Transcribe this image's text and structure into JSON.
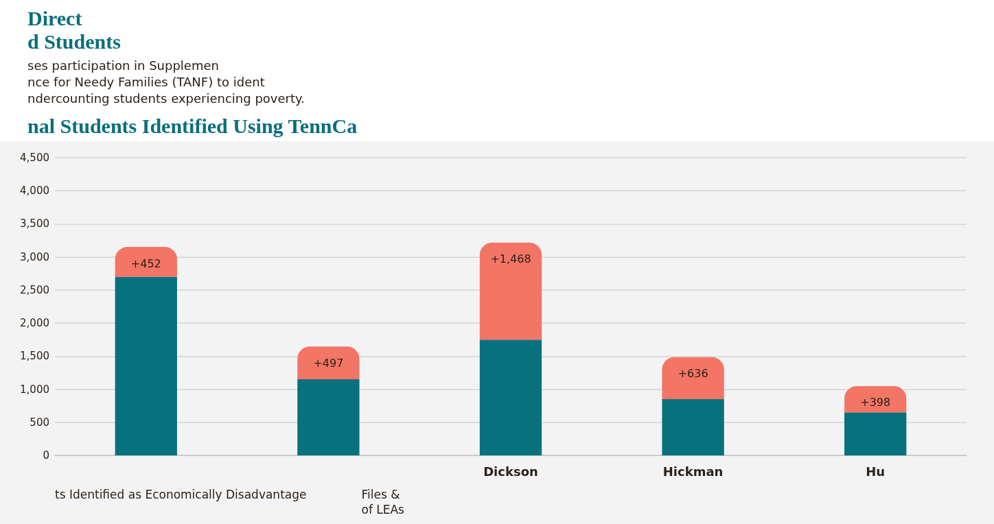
{
  "chart_data": {
    "type": "bar",
    "title": "nal Students Identified Using TennCa",
    "categories": [
      null,
      null,
      "Dickson",
      "Hickman",
      "Hu"
    ],
    "stacked": true,
    "series": [
      {
        "color": "#08717e",
        "values": [
          2700,
          1150,
          1750,
          850,
          650
        ]
      },
      {
        "color": "#f37566",
        "values": [
          452,
          497,
          1468,
          636,
          398
        ],
        "value_labels": [
          "+452",
          "+497",
          "+1,468",
          "+636",
          "+398"
        ]
      }
    ],
    "ylim": [
      0,
      4500
    ],
    "yticks": [
      0,
      500,
      {
        "value": 1000,
        "label": "1,000"
      },
      {
        "value": 1500,
        "label": "1,500"
      },
      {
        "value": 2000,
        "label": "2,000"
      },
      {
        "value": 2500,
        "label": "2,500"
      },
      {
        "value": 3000,
        "label": "3,000"
      },
      {
        "value": 3500,
        "label": "3,500"
      },
      {
        "value": 4000,
        "label": "4,000"
      },
      {
        "value": 4500,
        "label": "4,500"
      }
    ],
    "grid": "y",
    "annotations": [
      "Direct",
      "d Students",
      "ses participation in Supplemen",
      "nce for Needy Families (TANF) to ident",
      "ndercounting students experiencing poverty.",
      "ts Identified as Economically Disadvantage",
      "Files &",
      "of LEAs"
    ]
  }
}
